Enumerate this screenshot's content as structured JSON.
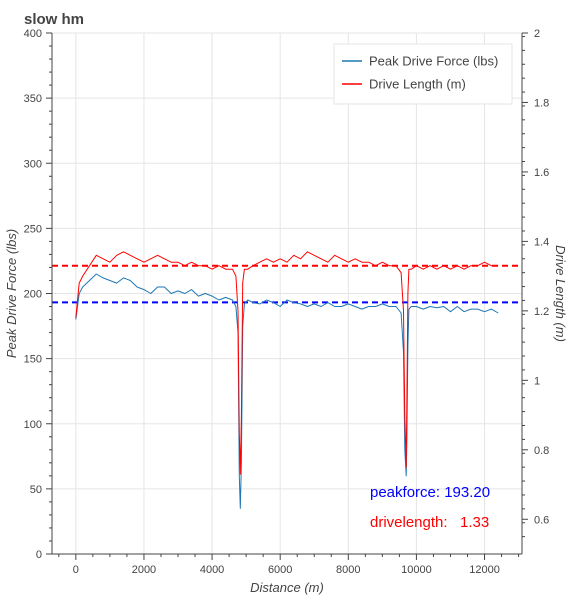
{
  "chart_data": {
    "type": "line",
    "title": "slow hm",
    "xlabel": "Distance (m)",
    "ylabel": "Peak Drive Force (lbs)",
    "y2label": "Drive Length (m)",
    "xlim": [
      -700,
      13100
    ],
    "ylim": [
      0,
      400
    ],
    "y2lim": [
      0.5,
      2.0
    ],
    "xticks": [
      0,
      2000,
      4000,
      6000,
      8000,
      10000,
      12000
    ],
    "yticks": [
      0,
      50,
      100,
      150,
      200,
      250,
      300,
      350,
      400
    ],
    "y2ticks": [
      0.6,
      0.8,
      1,
      1.2,
      1.4,
      1.6,
      1.8,
      2
    ],
    "grid": true,
    "legend_position": "top-right",
    "series": [
      {
        "name": "Peak Drive Force (lbs)",
        "axis": "left",
        "color": "#1f77b4",
        "x": [
          0,
          100,
          200,
          400,
          600,
          800,
          1000,
          1200,
          1400,
          1600,
          1800,
          2000,
          2200,
          2400,
          2600,
          2800,
          3000,
          3200,
          3400,
          3600,
          3800,
          4000,
          4200,
          4400,
          4600,
          4700,
          4760,
          4800,
          4830,
          4860,
          4900,
          4950,
          5050,
          5200,
          5400,
          5600,
          5800,
          6000,
          6200,
          6400,
          6600,
          6800,
          7000,
          7200,
          7400,
          7600,
          7800,
          8000,
          8200,
          8400,
          8600,
          8800,
          9000,
          9200,
          9400,
          9550,
          9620,
          9660,
          9700,
          9720,
          9750,
          9780,
          9850,
          10000,
          10200,
          10400,
          10600,
          10800,
          11000,
          11200,
          11400,
          11600,
          11800,
          12000,
          12200,
          12400
        ],
        "values": [
          180,
          200,
          205,
          210,
          215,
          212,
          210,
          208,
          212,
          210,
          205,
          203,
          200,
          205,
          205,
          200,
          202,
          200,
          203,
          198,
          200,
          198,
          195,
          197,
          195,
          190,
          170,
          60,
          35,
          70,
          175,
          192,
          195,
          193,
          192,
          195,
          193,
          190,
          195,
          193,
          192,
          190,
          192,
          190,
          193,
          190,
          190,
          192,
          190,
          188,
          190,
          190,
          192,
          190,
          190,
          185,
          155,
          80,
          60,
          90,
          160,
          188,
          190,
          190,
          188,
          190,
          189,
          190,
          186,
          190,
          186,
          188,
          188,
          186,
          188,
          185
        ]
      },
      {
        "name": "Drive Length (m)",
        "axis": "right",
        "color": "#ff0000",
        "x": [
          0,
          100,
          200,
          400,
          600,
          800,
          1000,
          1200,
          1400,
          1600,
          1800,
          2000,
          2200,
          2400,
          2600,
          2800,
          3000,
          3200,
          3400,
          3600,
          3800,
          4000,
          4200,
          4400,
          4600,
          4700,
          4760,
          4800,
          4830,
          4860,
          4900,
          4950,
          5050,
          5200,
          5400,
          5600,
          5800,
          6000,
          6200,
          6400,
          6600,
          6800,
          7000,
          7200,
          7400,
          7600,
          7800,
          8000,
          8200,
          8400,
          8600,
          8800,
          9000,
          9200,
          9400,
          9550,
          9620,
          9660,
          9700,
          9720,
          9750,
          9780,
          9850,
          10000,
          10200,
          10400,
          10600,
          10800,
          11000,
          11200,
          11400,
          11600,
          11800,
          12000,
          12200,
          12400
        ],
        "values": [
          1.18,
          1.28,
          1.3,
          1.33,
          1.36,
          1.35,
          1.34,
          1.36,
          1.37,
          1.36,
          1.35,
          1.34,
          1.35,
          1.36,
          1.35,
          1.34,
          1.34,
          1.33,
          1.34,
          1.33,
          1.33,
          1.32,
          1.33,
          1.32,
          1.32,
          1.3,
          1.2,
          0.85,
          0.73,
          0.9,
          1.28,
          1.32,
          1.32,
          1.33,
          1.34,
          1.35,
          1.34,
          1.35,
          1.34,
          1.36,
          1.35,
          1.37,
          1.36,
          1.35,
          1.34,
          1.36,
          1.35,
          1.34,
          1.35,
          1.34,
          1.34,
          1.33,
          1.34,
          1.33,
          1.33,
          1.31,
          1.2,
          0.9,
          0.75,
          0.95,
          1.25,
          1.32,
          1.32,
          1.33,
          1.32,
          1.33,
          1.32,
          1.33,
          1.32,
          1.33,
          1.32,
          1.33,
          1.33,
          1.34,
          1.33,
          1.33
        ]
      }
    ],
    "reference_lines": [
      {
        "axis": "left",
        "value": 193.2,
        "color": "#0000ff",
        "style": "dashed"
      },
      {
        "axis": "right",
        "value": 1.33,
        "color": "#ff0000",
        "style": "dashed"
      }
    ],
    "annotations": [
      {
        "text": "peakforce: 193.20",
        "color": "#0000ff"
      },
      {
        "text": "drivelength:   1.33",
        "color": "#ff0000"
      }
    ]
  }
}
